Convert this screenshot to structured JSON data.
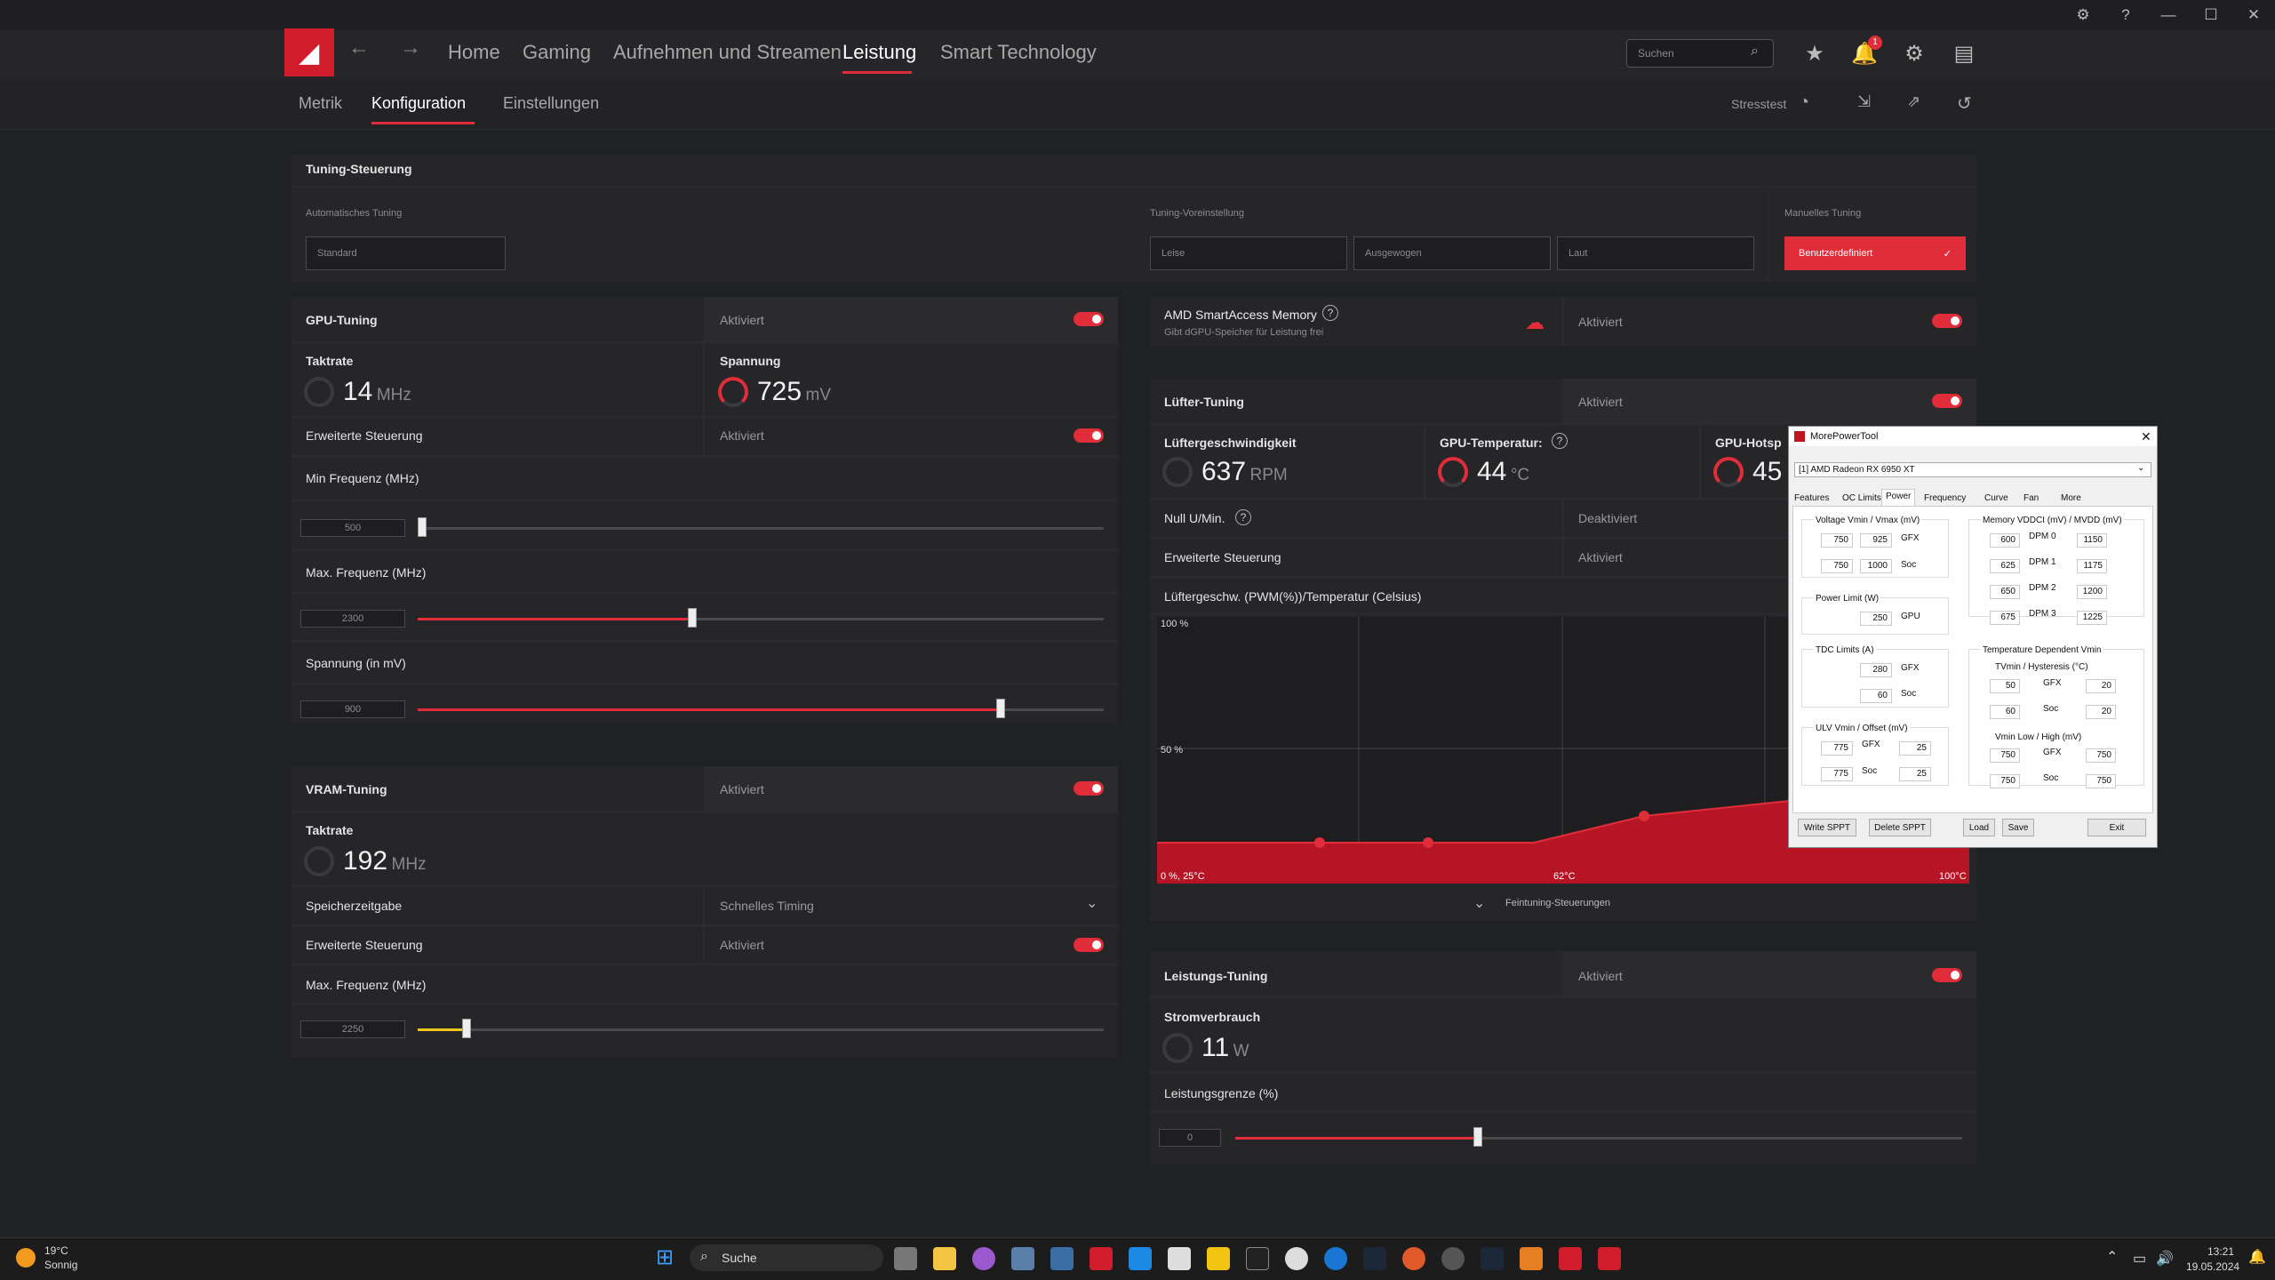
{
  "titlebar": {
    "buttons": [
      "bug-icon",
      "help-icon",
      "minimize-icon",
      "maximize-icon",
      "close-icon"
    ]
  },
  "nav": {
    "links": [
      "Home",
      "Gaming",
      "Aufnehmen und Streamen",
      "Leistung",
      "Smart Technology"
    ],
    "active": "Leistung",
    "search_placeholder": "Suchen",
    "notification_count": "1"
  },
  "subnav": {
    "tabs": [
      "Metrik",
      "Konfiguration",
      "Einstellungen"
    ],
    "active": "Konfiguration",
    "stresstest": "Stresstest"
  },
  "tuning": {
    "title": "Tuning-Steuerung",
    "auto_label": "Automatisches Tuning",
    "auto_value": "Standard",
    "preset_label": "Tuning-Voreinstellung",
    "presets": [
      "Leise",
      "Ausgewogen",
      "Laut"
    ],
    "manual_label": "Manuelles Tuning",
    "manual_value": "Benutzerdefiniert"
  },
  "gpu": {
    "title": "GPU-Tuning",
    "status": "Aktiviert",
    "clock_label": "Taktrate",
    "clock_value": "14",
    "clock_unit": "MHz",
    "voltage_label": "Spannung",
    "voltage_value": "725",
    "voltage_unit": "mV",
    "adv_label": "Erweiterte Steuerung",
    "adv_status": "Aktiviert",
    "min_freq_label": "Min Frequenz (MHz)",
    "min_freq": "500",
    "max_freq_label": "Max. Frequenz (MHz)",
    "max_freq": "2300",
    "volt_label": "Spannung (in mV)",
    "volt": "900"
  },
  "vram": {
    "title": "VRAM-Tuning",
    "status": "Aktiviert",
    "clock_label": "Taktrate",
    "clock_value": "192",
    "clock_unit": "MHz",
    "timing_label": "Speicherzeitgabe",
    "timing_value": "Schnelles Timing",
    "adv_label": "Erweiterte Steuerung",
    "adv_status": "Aktiviert",
    "max_freq_label": "Max. Frequenz (MHz)",
    "max_freq": "2250"
  },
  "sam": {
    "title": "AMD SmartAccess Memory",
    "subtitle": "Gibt dGPU-Speicher für Leistung frei",
    "status": "Aktiviert"
  },
  "fan": {
    "title": "Lüfter-Tuning",
    "status": "Aktiviert",
    "speed_label": "Lüftergeschwindigkeit",
    "speed_value": "637",
    "speed_unit": "RPM",
    "temp_label": "GPU-Temperatur:",
    "temp_value": "44",
    "temp_unit": "°C",
    "hotspot_label": "GPU-Hotsp",
    "hotspot_value": "45",
    "zero_label": "Null U/Min.",
    "zero_status": "Deaktiviert",
    "adv_label": "Erweiterte Steuerung",
    "adv_status": "Aktiviert",
    "curve_label": "Lüftergeschw. (PWM(%))/Temperatur (Celsius)",
    "y_top": "100 %",
    "y_mid": "50 %",
    "x_left": "0 %, 25°C",
    "x_mid": "62°C",
    "x_right": "100°C",
    "fine": "Feintuning-Steuerungen"
  },
  "power": {
    "title": "Leistungs-Tuning",
    "status": "Aktiviert",
    "use_label": "Stromverbrauch",
    "use_value": "11",
    "use_unit": "W",
    "limit_label": "Leistungsgrenze (%)",
    "limit": "0"
  },
  "mpt": {
    "title": "MorePowerTool",
    "device": "[1] AMD Radeon RX 6950 XT",
    "tabs": [
      "Features",
      "OC Limits",
      "Power",
      "Frequency",
      "Curve",
      "Fan",
      "More"
    ],
    "volt_title": "Voltage Vmin / Vmax (mV)",
    "volt_gfx_min": "750",
    "volt_gfx_max": "925",
    "volt_soc_min": "750",
    "volt_soc_max": "1000",
    "pl_title": "Power Limit (W)",
    "pl_gpu": "250",
    "tdc_title": "TDC Limits (A)",
    "tdc_gfx": "280",
    "tdc_soc": "60",
    "ulv_title": "ULV Vmin / Offset (mV)",
    "ulv_gfx": "775",
    "ulv_gfx_off": "25",
    "ulv_soc": "775",
    "ulv_soc_off": "25",
    "mem_title": "Memory VDDCI (mV) / MVDD (mV)",
    "dpm": [
      "DPM 0",
      "DPM 1",
      "DPM 2",
      "DPM 3"
    ],
    "vddci": [
      "600",
      "625",
      "650",
      "675"
    ],
    "mvdd": [
      "1150",
      "1175",
      "1200",
      "1225"
    ],
    "tdv_title": "Temperature Dependent Vmin",
    "tvmin_title": "TVmin / Hysteresis (°C)",
    "tv_gfx": "50",
    "tv_gfx_h": "20",
    "tv_soc": "60",
    "tv_soc_h": "20",
    "vlh_title": "Vmin Low / High (mV)",
    "vlh_gfx_l": "750",
    "vlh_gfx_h": "750",
    "vlh_soc_l": "750",
    "vlh_soc_h": "750",
    "gfx": "GFX",
    "soc": "Soc",
    "gpu": "GPU",
    "buttons": [
      "Write SPPT",
      "Delete SPPT",
      "Load",
      "Save",
      "Exit"
    ]
  },
  "taskbar": {
    "temp": "19°C",
    "weather": "Sonnig",
    "search": "Suche",
    "time": "13:21",
    "date": "19.05.2024"
  }
}
